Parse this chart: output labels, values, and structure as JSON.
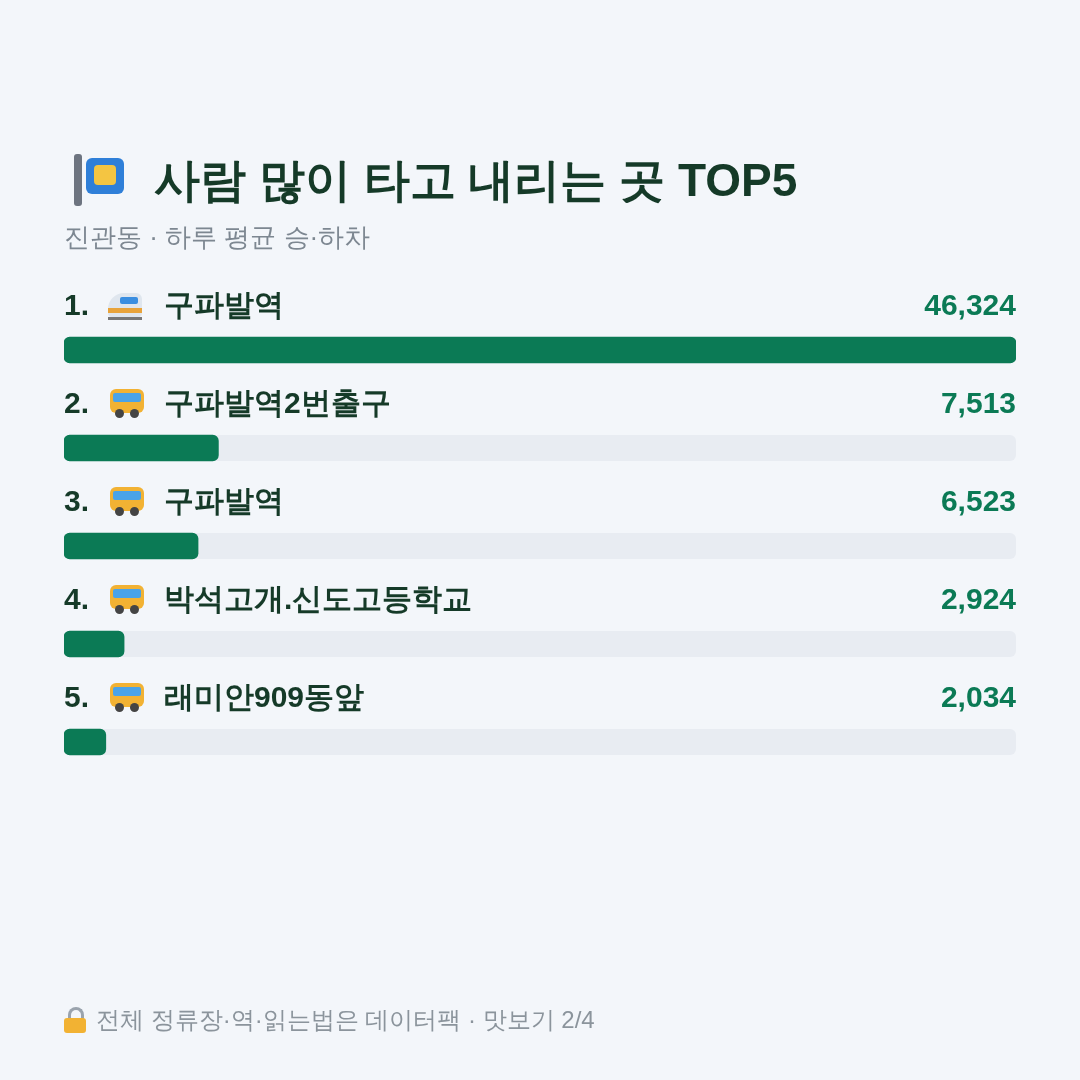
{
  "chart_data": {
    "type": "bar",
    "orientation": "horizontal",
    "title": "사람 많이 타고 내리는 곳 TOP5",
    "subtitle": "진관동 · 하루 평균 승·하차",
    "categories": [
      "1. 구파발역",
      "2. 구파발역2번출구",
      "3. 구파발역",
      "4. 박석고개.신도고등학교",
      "5. 래미안909동앞"
    ],
    "values": [
      46324,
      7513,
      6523,
      2924,
      2034
    ],
    "color": "#0b7a55",
    "value_labels": [
      "46,324",
      "7,513",
      "6,523",
      "2,924",
      "2,034"
    ],
    "annotations": [
      "전체 정류장·역·읽는법은 데이터팩 · 맛보기 2/4"
    ]
  }
}
